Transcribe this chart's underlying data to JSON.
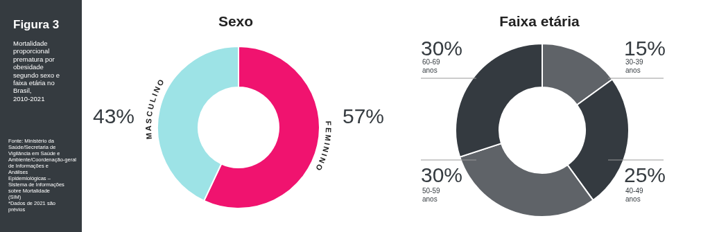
{
  "chart_data": [
    {
      "type": "other",
      "title": "Figura 3",
      "subtitle": "Mortalidade proporcional prematura por obesidade segundo sexo e faixa etária no Brasil, 2010-2021",
      "annotations": [
        "Fonte: Ministério da Saúde/Secretaria de Vigilância em Saúde e Ambiente/Coordenação-geral de Informações e Análises Epidemiológicas – Sistema de Informações sobre Mortalidade (SIM)",
        "*Dados de 2021 são prévios"
      ]
    },
    {
      "type": "donut",
      "title": "Sexo",
      "categories": [
        "FEMININO",
        "MASCULINO"
      ],
      "values": [
        57,
        43
      ],
      "colors": [
        "#f0136f",
        "#9de3e6"
      ],
      "value_labels": [
        "57%",
        "43%"
      ]
    },
    {
      "type": "donut",
      "title": "Faixa etária",
      "categories": [
        "30-39 anos",
        "40-49 anos",
        "50-59 anos",
        "60-69 anos"
      ],
      "values": [
        15,
        25,
        30,
        30
      ],
      "colors": [
        "#5f6368",
        "#343a40",
        "#5f6368",
        "#343a40"
      ],
      "value_labels": [
        "15%",
        "25%",
        "30%",
        "30%"
      ]
    }
  ]
}
